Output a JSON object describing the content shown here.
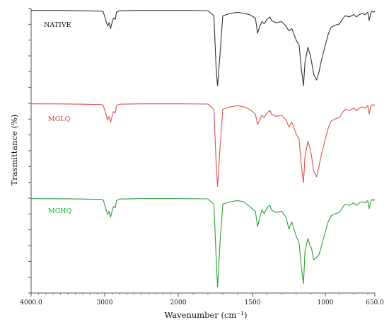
{
  "chart_data": {
    "type": "line",
    "xlabel": "Wavenumber (cm⁻¹)",
    "ylabel": "Trasmittance (%)",
    "x_tick_labels": [
      "4000.0",
      "3000",
      "2000",
      "1500",
      "1000",
      "650.0"
    ],
    "x_ticks": [
      4000,
      3000,
      2000,
      1500,
      1000,
      650
    ],
    "xlim": [
      4000,
      650
    ],
    "x_reversed": true,
    "grid": false,
    "series": [
      {
        "name": "NATIVE",
        "color": "#333333",
        "label_color": "#111111",
        "x": [
          4000,
          3600,
          3300,
          3050,
          3020,
          2960,
          2940,
          2920,
          2900,
          2880,
          2855,
          2840,
          2800,
          2500,
          2000,
          1800,
          1760,
          1745,
          1735,
          1720,
          1700,
          1650,
          1600,
          1560,
          1520,
          1480,
          1465,
          1450,
          1435,
          1420,
          1400,
          1380,
          1370,
          1340,
          1300,
          1270,
          1250,
          1230,
          1200,
          1180,
          1165,
          1150,
          1140,
          1120,
          1105,
          1095,
          1080,
          1060,
          1045,
          1030,
          1000,
          980,
          960,
          930,
          900,
          880,
          860,
          830,
          800,
          780,
          760,
          740,
          720,
          700,
          690,
          680,
          670,
          660,
          650
        ],
        "y": [
          99.6,
          99.5,
          99.3,
          99.0,
          98.5,
          86,
          89,
          84,
          89,
          93,
          92,
          98,
          99.3,
          99.6,
          99.6,
          99.4,
          95,
          50,
          35,
          60,
          95,
          97,
          98,
          97,
          96,
          93,
          80,
          86,
          90,
          88,
          92,
          94,
          91,
          89,
          90,
          86,
          82,
          84,
          74,
          70,
          50,
          35,
          55,
          68,
          62,
          56,
          45,
          40,
          46,
          55,
          70,
          79,
          85,
          87,
          88,
          92,
          95,
          94,
          96,
          94,
          96,
          97,
          96,
          98,
          91,
          97,
          99,
          98,
          99
        ]
      },
      {
        "name": "MGLQ",
        "color": "#d9534f",
        "label_color": "#c9403b",
        "x": [
          4000,
          3600,
          3300,
          3050,
          3020,
          2960,
          2940,
          2920,
          2900,
          2880,
          2855,
          2840,
          2800,
          2500,
          2000,
          1800,
          1760,
          1745,
          1735,
          1720,
          1700,
          1650,
          1600,
          1560,
          1520,
          1480,
          1465,
          1450,
          1435,
          1420,
          1400,
          1380,
          1370,
          1340,
          1300,
          1270,
          1250,
          1230,
          1200,
          1180,
          1165,
          1150,
          1140,
          1120,
          1105,
          1095,
          1080,
          1060,
          1045,
          1030,
          1000,
          980,
          960,
          930,
          900,
          880,
          860,
          830,
          800,
          780,
          760,
          740,
          720,
          700,
          690,
          680,
          670,
          660,
          650
        ],
        "y": [
          99.6,
          99.5,
          99.3,
          99.0,
          98.5,
          86,
          89,
          84,
          89,
          93,
          92,
          98,
          99.3,
          99.6,
          99.6,
          99.4,
          95,
          50,
          30,
          60,
          95,
          97,
          98,
          97,
          95,
          91,
          82,
          86,
          90,
          88,
          92,
          94,
          91,
          89,
          90,
          86,
          80,
          84,
          74,
          70,
          48,
          33,
          55,
          68,
          62,
          56,
          43,
          38,
          46,
          55,
          70,
          79,
          85,
          87,
          88,
          92,
          95,
          94,
          96,
          94,
          96,
          97,
          96,
          98,
          91,
          97,
          99,
          98,
          99
        ]
      },
      {
        "name": "MGHQ",
        "color": "#2e9e37",
        "label_color": "#1fa83a",
        "x": [
          4000,
          3600,
          3300,
          3050,
          3020,
          2960,
          2940,
          2920,
          2900,
          2880,
          2855,
          2840,
          2800,
          2500,
          2000,
          1800,
          1760,
          1745,
          1735,
          1720,
          1700,
          1650,
          1600,
          1560,
          1520,
          1480,
          1465,
          1450,
          1435,
          1420,
          1400,
          1380,
          1370,
          1340,
          1300,
          1270,
          1250,
          1230,
          1200,
          1180,
          1165,
          1150,
          1140,
          1120,
          1105,
          1095,
          1080,
          1060,
          1045,
          1030,
          1000,
          980,
          960,
          930,
          900,
          880,
          860,
          830,
          800,
          780,
          760,
          740,
          720,
          700,
          690,
          680,
          670,
          660,
          650
        ],
        "y": [
          99.6,
          99.5,
          99.3,
          99.0,
          98.5,
          86,
          89,
          84,
          89,
          93,
          92,
          98,
          99.3,
          99.6,
          99.6,
          99.4,
          95,
          50,
          25,
          60,
          95,
          97,
          98,
          97,
          93,
          89,
          76,
          84,
          90,
          87,
          92,
          94,
          90,
          88,
          89,
          84,
          74,
          80,
          68,
          62,
          42,
          28,
          55,
          66,
          60,
          58,
          48,
          50,
          52,
          58,
          72,
          80,
          85,
          87,
          88,
          92,
          95,
          94,
          96,
          94,
          96,
          97,
          96,
          98,
          91,
          97,
          99,
          98,
          99
        ]
      }
    ]
  }
}
